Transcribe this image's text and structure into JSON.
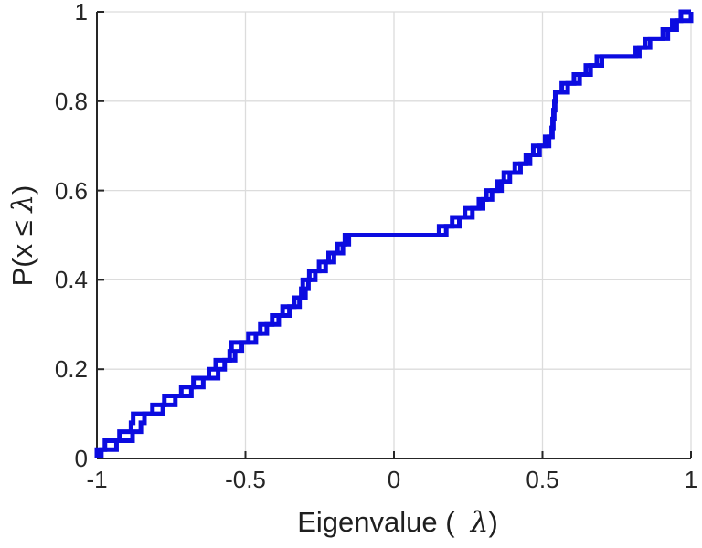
{
  "figure": {
    "background": "#ffffff",
    "axis_color": "#262626",
    "grid_color": "#dcdcdc",
    "line_color": "#0b0be0",
    "tick_label_color": "#262626"
  },
  "chart_data": {
    "type": "line",
    "subtype": "ecdf-staircase",
    "title": "",
    "xlabel": "Eigenvalue (  λ)",
    "ylabel": "P(x ≤ λ)",
    "xlim": [
      -1,
      1
    ],
    "ylim": [
      0,
      1
    ],
    "grid": true,
    "legend": "none",
    "xticks": [
      -1,
      -0.5,
      0,
      0.5,
      1
    ],
    "xtick_labels": [
      "-1",
      "-0.5",
      "0",
      "0.5",
      "1"
    ],
    "yticks": [
      0,
      0.2,
      0.4,
      0.6,
      0.8,
      1
    ],
    "ytick_labels": [
      "0",
      "0.2",
      "0.4",
      "0.6",
      "0.8",
      "1"
    ],
    "n_points": 50,
    "step_size": 0.02,
    "series": [
      {
        "name": "eigenvalue-ecdf-primary",
        "color": "#0b0be0",
        "eigenvalues": [
          -1.0,
          -0.973,
          -0.924,
          -0.885,
          -0.878,
          -0.813,
          -0.773,
          -0.716,
          -0.675,
          -0.623,
          -0.6,
          -0.553,
          -0.547,
          -0.49,
          -0.45,
          -0.41,
          -0.375,
          -0.336,
          -0.312,
          -0.307,
          -0.285,
          -0.252,
          -0.22,
          -0.19,
          -0.165,
          0.152,
          0.196,
          0.239,
          0.286,
          0.311,
          0.348,
          0.37,
          0.407,
          0.444,
          0.469,
          0.509,
          0.531,
          0.534,
          0.537,
          0.54,
          0.543,
          0.565,
          0.606,
          0.646,
          0.683,
          0.814,
          0.845,
          0.905,
          0.937,
          0.966
        ]
      },
      {
        "name": "eigenvalue-ecdf-secondary",
        "color": "#0b0be0",
        "eigenvalues": [
          -0.985,
          -0.934,
          -0.88,
          -0.852,
          -0.84,
          -0.778,
          -0.736,
          -0.682,
          -0.642,
          -0.592,
          -0.57,
          -0.535,
          -0.512,
          -0.465,
          -0.428,
          -0.388,
          -0.352,
          -0.318,
          -0.298,
          -0.288,
          -0.265,
          -0.23,
          -0.202,
          -0.172,
          -0.152,
          0.176,
          0.22,
          0.264,
          0.3,
          0.33,
          0.362,
          0.39,
          0.426,
          0.458,
          0.49,
          0.522,
          0.5335,
          0.5365,
          0.5395,
          0.5425,
          0.546,
          0.585,
          0.625,
          0.662,
          0.7,
          0.826,
          0.862,
          0.922,
          0.952,
          1.0
        ]
      }
    ]
  }
}
